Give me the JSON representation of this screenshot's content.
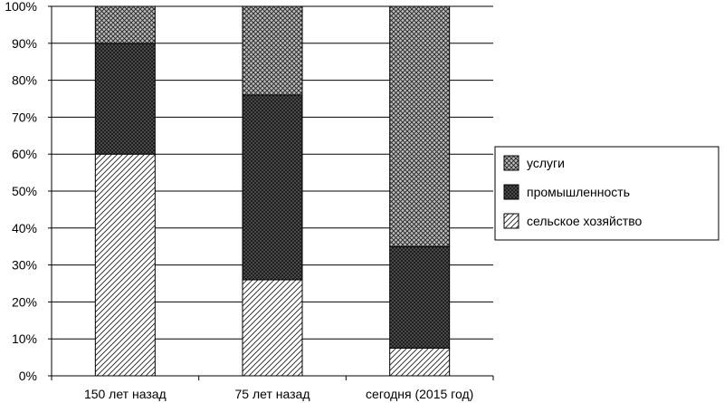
{
  "chart_data": {
    "type": "bar",
    "stacked": true,
    "categories": [
      "150 лет назад",
      "75 лет назад",
      "сегодня (2015 год)"
    ],
    "series": [
      {
        "name": "сельское хозяйство",
        "values": [
          60,
          26,
          7.5
        ],
        "pattern": "hatch-diagonal"
      },
      {
        "name": "промышленность",
        "values": [
          30,
          50,
          27.5
        ],
        "pattern": "crosshatch-dense"
      },
      {
        "name": "услуги",
        "values": [
          10,
          24,
          65
        ],
        "pattern": "crosshatch-light"
      }
    ],
    "ylim": [
      0,
      100
    ],
    "yticks": [
      "0%",
      "10%",
      "20%",
      "30%",
      "40%",
      "50%",
      "60%",
      "70%",
      "80%",
      "90%",
      "100%"
    ],
    "grid": true,
    "legend": {
      "placement": "right",
      "entries": [
        "услуги",
        "промышленность",
        "сельское хозяйство"
      ]
    },
    "title": "",
    "xlabel": "",
    "ylabel": ""
  }
}
